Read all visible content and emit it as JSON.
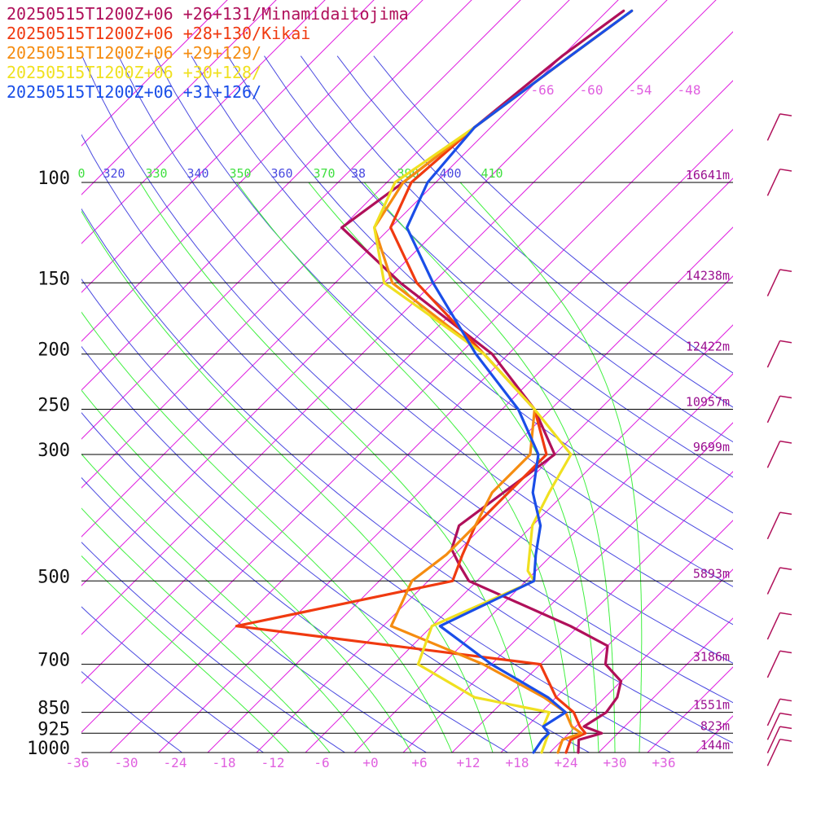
{
  "legend": [
    {
      "label": "20250515T1200Z+06 +26+131/Minamidaitojima",
      "color": "#b0105a"
    },
    {
      "label": "20250515T1200Z+06 +28+130/Kikai",
      "color": "#f03a10"
    },
    {
      "label": "20250515T1200Z+06 +29+129/",
      "color": "#f58c10"
    },
    {
      "label": "20250515T1200Z+06 +30+128/",
      "color": "#f0e020"
    },
    {
      "label": "20250515T1200Z+06 +31+126/",
      "color": "#1a4ee8"
    }
  ],
  "colors": {
    "isobar": "#000000",
    "isotherm": "#e020e0",
    "dry_adiabat": "#4a4ae0",
    "moist_adiabat": "#40f040",
    "height_label": "#9a1090",
    "temp_label": "#e060e0",
    "theta_label_blue": "#4a4ae0",
    "theta_label_green": "#40e040",
    "wind_barb": "#b0105a"
  },
  "chart_data": {
    "type": "line",
    "kind": "skew-T log-P sounding",
    "x_axis_unit": "degC",
    "y_axis_unit": "hPa",
    "y_log_scale": true,
    "ylim": [
      1000,
      100
    ],
    "xlim": [
      -40,
      40
    ],
    "pressure_levels": [
      {
        "p": 100,
        "label": "100",
        "height": "16641m"
      },
      {
        "p": 150,
        "label": "150",
        "height": "14238m"
      },
      {
        "p": 200,
        "label": "200",
        "height": "12422m"
      },
      {
        "p": 250,
        "label": "250",
        "height": "10957m"
      },
      {
        "p": 300,
        "label": "300",
        "height": "9699m"
      },
      {
        "p": 500,
        "label": "500",
        "height": "5893m"
      },
      {
        "p": 700,
        "label": "700",
        "height": "3186m"
      },
      {
        "p": 850,
        "label": "850",
        "height": "1551m"
      },
      {
        "p": 925,
        "label": "925",
        "height": "823m"
      },
      {
        "p": 1000,
        "label": "1000",
        "height": "144m"
      }
    ],
    "temp_ticks": [
      {
        "t": -36,
        "label": "-36"
      },
      {
        "t": -30,
        "label": "-30"
      },
      {
        "t": -24,
        "label": "-24"
      },
      {
        "t": -18,
        "label": "-18"
      },
      {
        "t": -12,
        "label": "-12"
      },
      {
        "t": -6,
        "label": "-6"
      },
      {
        "t": 0,
        "label": "+0"
      },
      {
        "t": 6,
        "label": "+6"
      },
      {
        "t": 12,
        "label": "+12"
      },
      {
        "t": 18,
        "label": "+18"
      },
      {
        "t": 24,
        "label": "+24"
      },
      {
        "t": 30,
        "label": "+30"
      },
      {
        "t": 36,
        "label": "+36"
      }
    ],
    "top_isotherm_labels": [
      {
        "t": -66,
        "label": "-66"
      },
      {
        "t": -60,
        "label": "-60"
      },
      {
        "t": -54,
        "label": "-54"
      },
      {
        "t": -48,
        "label": "-48"
      }
    ],
    "theta_labels": [
      {
        "theta": 310,
        "label": "0"
      },
      {
        "theta": 320,
        "label": "320"
      },
      {
        "theta": 330,
        "label": "330"
      },
      {
        "theta": 340,
        "label": "340"
      },
      {
        "theta": 350,
        "label": "350"
      },
      {
        "theta": 360,
        "label": "360"
      },
      {
        "theta": 370,
        "label": "370"
      },
      {
        "theta": 380,
        "label": "38"
      },
      {
        "theta": 390,
        "label": "390"
      },
      {
        "theta": 400,
        "label": "400"
      },
      {
        "theta": 410,
        "label": "410"
      }
    ],
    "isotherm_range": [
      -110,
      40
    ],
    "dry_adiabat_thetas": [
      250,
      260,
      270,
      280,
      290,
      300,
      310,
      320,
      330,
      340,
      350,
      360,
      370,
      380,
      390,
      400,
      410,
      420
    ],
    "moist_adiabat_t_at_1000": [
      -10,
      -5,
      0,
      5,
      10,
      15,
      20,
      25,
      28,
      30,
      33
    ],
    "series": [
      {
        "name": "20250515T1200Z+06 +26+131/Minamidaitojima",
        "color": "#b0105a",
        "temperature": [
          [
            1000,
            25.5
          ],
          [
            950,
            24
          ],
          [
            925,
            26
          ],
          [
            900,
            23
          ],
          [
            850,
            24
          ],
          [
            800,
            23.5
          ],
          [
            750,
            22
          ],
          [
            700,
            18
          ],
          [
            650,
            16
          ],
          [
            600,
            9
          ],
          [
            500,
            -9
          ],
          [
            470,
            -12
          ],
          [
            440,
            -15
          ],
          [
            400,
            -17
          ],
          [
            300,
            -14
          ],
          [
            250,
            -22
          ],
          [
            200,
            -34
          ],
          [
            150,
            -54
          ],
          [
            120,
            -68
          ],
          [
            100,
            -66
          ],
          [
            80,
            -64
          ],
          [
            60,
            -62
          ],
          [
            50,
            -60
          ]
        ],
        "dewpoint": []
      },
      {
        "name": "20250515T1200Z+06 +28+130/Kikai",
        "color": "#f03a10",
        "temperature": [
          [
            1000,
            24
          ],
          [
            950,
            23
          ],
          [
            925,
            24
          ],
          [
            900,
            22.5
          ],
          [
            850,
            20
          ],
          [
            800,
            16
          ],
          [
            700,
            10
          ],
          [
            600,
            -32
          ],
          [
            500,
            -11
          ],
          [
            450,
            -13
          ],
          [
            400,
            -15
          ],
          [
            300,
            -15
          ],
          [
            250,
            -22
          ],
          [
            200,
            -35
          ],
          [
            150,
            -52
          ],
          [
            120,
            -62
          ],
          [
            100,
            -65
          ],
          [
            80,
            -64
          ],
          [
            60,
            -61
          ],
          [
            50,
            -59
          ]
        ],
        "dewpoint": []
      },
      {
        "name": "20250515T1200Z+06 +29+129/",
        "color": "#f58c10",
        "temperature": [
          [
            1000,
            23
          ],
          [
            950,
            22
          ],
          [
            925,
            23.5
          ],
          [
            900,
            21.5
          ],
          [
            850,
            19
          ],
          [
            800,
            14.5
          ],
          [
            700,
            3
          ],
          [
            600,
            -13
          ],
          [
            500,
            -16
          ],
          [
            450,
            -15
          ],
          [
            400,
            -15
          ],
          [
            350,
            -17
          ],
          [
            300,
            -17
          ],
          [
            250,
            -22
          ],
          [
            200,
            -35
          ],
          [
            150,
            -55
          ],
          [
            120,
            -64
          ],
          [
            100,
            -66
          ],
          [
            80,
            -64
          ],
          [
            60,
            -61
          ],
          [
            50,
            -59
          ]
        ],
        "dewpoint": []
      },
      {
        "name": "20250515T1200Z+06 +30+128/",
        "color": "#f0e020",
        "temperature": [
          [
            1000,
            21
          ],
          [
            950,
            20
          ],
          [
            925,
            19.5
          ],
          [
            900,
            18
          ],
          [
            850,
            17
          ],
          [
            800,
            6
          ],
          [
            700,
            -5
          ],
          [
            600,
            -8
          ],
          [
            500,
            -1
          ],
          [
            480,
            -3
          ],
          [
            400,
            -8
          ],
          [
            350,
            -10
          ],
          [
            300,
            -12
          ],
          [
            250,
            -22
          ],
          [
            200,
            -35
          ],
          [
            150,
            -56
          ],
          [
            120,
            -64
          ],
          [
            100,
            -67
          ],
          [
            80,
            -64
          ],
          [
            60,
            -61
          ],
          [
            50,
            -59
          ]
        ],
        "dewpoint": []
      },
      {
        "name": "20250515T1200Z+06 +31+126/",
        "color": "#1a4ee8",
        "temperature": [
          [
            1000,
            20
          ],
          [
            950,
            19.5
          ],
          [
            925,
            19.5
          ],
          [
            900,
            18
          ],
          [
            850,
            19
          ],
          [
            800,
            15
          ],
          [
            700,
            4
          ],
          [
            600,
            -7
          ],
          [
            500,
            -1
          ],
          [
            450,
            -4
          ],
          [
            400,
            -7
          ],
          [
            350,
            -12
          ],
          [
            300,
            -16
          ],
          [
            250,
            -24
          ],
          [
            200,
            -36
          ],
          [
            150,
            -50
          ],
          [
            120,
            -60
          ],
          [
            100,
            -63
          ],
          [
            80,
            -64
          ],
          [
            60,
            -61
          ],
          [
            50,
            -59
          ]
        ],
        "dewpoint": []
      }
    ],
    "wind_barbs": [
      {
        "p": 1000
      },
      {
        "p": 950
      },
      {
        "p": 900
      },
      {
        "p": 850
      },
      {
        "p": 700
      },
      {
        "p": 600
      },
      {
        "p": 500
      },
      {
        "p": 400
      },
      {
        "p": 300
      },
      {
        "p": 250
      },
      {
        "p": 200
      },
      {
        "p": 150
      },
      {
        "p": 100
      },
      {
        "p": 80
      }
    ]
  }
}
